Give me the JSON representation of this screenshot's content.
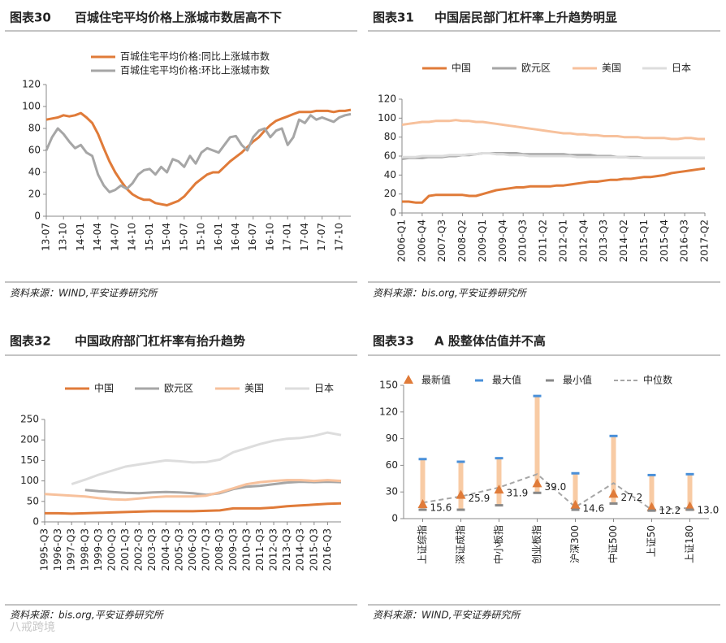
{
  "chart_data": [
    {
      "type": "line",
      "figure": "图表30",
      "title": "百城住宅平均价格上涨城市数居高不下",
      "source": "资料来源：WIND,平安证券研究所",
      "categories": [
        "13-07",
        null,
        null,
        "13-10",
        null,
        null,
        "14-01",
        null,
        null,
        "14-04",
        null,
        null,
        "14-07",
        null,
        null,
        "14-10",
        null,
        null,
        "15-01",
        null,
        null,
        "15-04",
        null,
        null,
        "15-07",
        null,
        null,
        "15-10",
        null,
        null,
        "16-01",
        null,
        null,
        "16-04",
        null,
        null,
        "16-07",
        null,
        null,
        "16-10",
        null,
        null,
        "17-01",
        null,
        null,
        "17-04",
        null,
        null,
        "17-07",
        null,
        null,
        "17-10",
        null,
        null
      ],
      "series": [
        {
          "name": "百城住宅平均价格:同比上涨城市数",
          "color": "#e07b39",
          "values": [
            88,
            89,
            90,
            92,
            91,
            92,
            94,
            90,
            85,
            75,
            62,
            50,
            40,
            32,
            25,
            20,
            17,
            15,
            15,
            12,
            11,
            10,
            12,
            14,
            18,
            24,
            30,
            34,
            38,
            40,
            40,
            45,
            50,
            54,
            58,
            63,
            68,
            72,
            78,
            83,
            87,
            89,
            91,
            93,
            95,
            95,
            95,
            96,
            96,
            96,
            95,
            96,
            96,
            97
          ]
        },
        {
          "name": "百城住宅平均价格:环比上涨城市数",
          "color": "#a6a6a6",
          "values": [
            60,
            72,
            80,
            75,
            68,
            62,
            65,
            58,
            55,
            38,
            28,
            22,
            24,
            28,
            25,
            30,
            38,
            42,
            43,
            38,
            45,
            40,
            52,
            50,
            45,
            55,
            48,
            58,
            62,
            60,
            58,
            65,
            72,
            73,
            65,
            60,
            72,
            78,
            80,
            72,
            78,
            80,
            65,
            72,
            88,
            85,
            92,
            88,
            90,
            88,
            86,
            90,
            92,
            93
          ]
        }
      ],
      "ylim": [
        0,
        120
      ],
      "yticks": [
        0,
        20,
        40,
        60,
        80,
        100,
        120
      ],
      "legend": "top"
    },
    {
      "type": "line",
      "figure": "图表31",
      "title": "中国居民部门杠杆率上升趋势明显",
      "source": "资料来源：bis.org,平安证券研究所",
      "categories": [
        "2006-Q1",
        null,
        null,
        "2006-Q4",
        null,
        null,
        "2007-Q3",
        null,
        null,
        "2008-Q2",
        null,
        null,
        "2009-Q1",
        null,
        null,
        "2009-Q4",
        null,
        null,
        "2010-Q3",
        null,
        null,
        "2011-Q2",
        null,
        null,
        "2012-Q1",
        null,
        null,
        "2012-Q4",
        null,
        null,
        "2013-Q3",
        null,
        null,
        "2014-Q2",
        null,
        null,
        "2015-Q1",
        null,
        null,
        "2015-Q4",
        null,
        null,
        "2016-Q3",
        null,
        null,
        "2017-Q2"
      ],
      "series": [
        {
          "name": "中国",
          "color": "#e07b39",
          "values": [
            12,
            12,
            11,
            11,
            18,
            19,
            19,
            19,
            19,
            19,
            18,
            18,
            20,
            22,
            24,
            25,
            26,
            27,
            27,
            28,
            28,
            28,
            28,
            29,
            29,
            30,
            31,
            32,
            33,
            33,
            34,
            35,
            35,
            36,
            36,
            37,
            38,
            38,
            39,
            40,
            42,
            43,
            44,
            45,
            46,
            47
          ]
        },
        {
          "name": "欧元区",
          "color": "#a6a6a6",
          "values": [
            57,
            58,
            58,
            58,
            59,
            59,
            59,
            60,
            60,
            61,
            61,
            62,
            63,
            63,
            63,
            63,
            63,
            63,
            62,
            62,
            62,
            62,
            62,
            62,
            62,
            61,
            61,
            61,
            61,
            60,
            60,
            60,
            59,
            59,
            59,
            59,
            58,
            58,
            58,
            58,
            58,
            58,
            58,
            58,
            58,
            58
          ]
        },
        {
          "name": "美国",
          "color": "#f7c19c",
          "values": [
            93,
            94,
            95,
            96,
            96,
            97,
            97,
            97,
            98,
            97,
            97,
            96,
            96,
            95,
            94,
            93,
            92,
            91,
            90,
            89,
            88,
            87,
            86,
            85,
            84,
            84,
            83,
            83,
            82,
            82,
            81,
            81,
            81,
            80,
            80,
            80,
            79,
            79,
            79,
            79,
            78,
            78,
            79,
            79,
            78,
            78
          ]
        },
        {
          "name": "日本",
          "color": "#dddddd",
          "values": [
            59,
            59,
            59,
            60,
            60,
            60,
            60,
            61,
            61,
            61,
            62,
            62,
            63,
            63,
            62,
            62,
            61,
            61,
            61,
            60,
            60,
            60,
            60,
            60,
            60,
            60,
            59,
            59,
            59,
            59,
            59,
            59,
            59,
            59,
            58,
            58,
            58,
            58,
            58,
            58,
            58,
            58,
            58,
            58,
            58,
            58
          ]
        }
      ],
      "ylim": [
        0,
        120
      ],
      "yticks": [
        0,
        20,
        40,
        60,
        80,
        100,
        120
      ],
      "legend": "top"
    },
    {
      "type": "line",
      "figure": "图表32",
      "title": "中国政府部门杠杆率有抬升趋势",
      "source": "资料来源：bis.org,平安证券研究所",
      "categories": [
        "1995-Q3",
        "1996-Q3",
        "1997-Q3",
        "1998-Q3",
        "1999-Q3",
        "2000-Q3",
        "2001-Q3",
        "2002-Q3",
        "2003-Q3",
        "2004-Q3",
        "2005-Q3",
        "2006-Q3",
        "2007-Q3",
        "2008-Q3",
        "2009-Q3",
        "2010-Q3",
        "2011-Q3",
        "2012-Q3",
        "2013-Q3",
        "2014-Q3",
        "2015-Q3",
        "2016-Q3",
        null
      ],
      "series": [
        {
          "name": "中国",
          "color": "#e07b39",
          "values": [
            21,
            21,
            20,
            21,
            22,
            23,
            24,
            25,
            26,
            26,
            26,
            26,
            27,
            28,
            33,
            33,
            33,
            35,
            38,
            40,
            42,
            44,
            45
          ]
        },
        {
          "name": "欧元区",
          "color": "#a6a6a6",
          "values": [
            null,
            null,
            null,
            78,
            75,
            73,
            71,
            70,
            72,
            73,
            72,
            70,
            66,
            70,
            80,
            86,
            88,
            92,
            96,
            98,
            97,
            98,
            97
          ]
        },
        {
          "name": "美国",
          "color": "#f7c19c",
          "values": [
            68,
            66,
            64,
            62,
            58,
            55,
            54,
            57,
            60,
            62,
            62,
            62,
            64,
            72,
            82,
            92,
            97,
            100,
            102,
            102,
            100,
            102,
            100
          ]
        },
        {
          "name": "日本",
          "color": "#dddddd",
          "values": [
            null,
            null,
            92,
            103,
            115,
            125,
            135,
            140,
            145,
            150,
            148,
            145,
            146,
            152,
            170,
            180,
            190,
            198,
            203,
            205,
            210,
            218,
            212
          ]
        }
      ],
      "ylim": [
        0,
        250
      ],
      "yticks": [
        0,
        50,
        100,
        150,
        200,
        250
      ],
      "legend": "top"
    },
    {
      "type": "range",
      "figure": "图表33",
      "title": "A 股整体估值并不高",
      "source": "资料来源：WIND,平安证券研究所",
      "categories": [
        "上证综指",
        "深证成指",
        "中小板指",
        "创业板指",
        "沪深300",
        "中证500",
        "上证50",
        "上证180"
      ],
      "series": [
        {
          "name": "最新值",
          "color": "#e07b39",
          "marker": "triangle",
          "values": [
            15.6,
            25.9,
            31.9,
            39.0,
            14.6,
            27.2,
            12.2,
            13.0
          ],
          "value_labels": [
            "15.6",
            "25.9",
            "31.9",
            "39.0",
            "14.6",
            "27.2",
            "12.2",
            "13.0"
          ]
        },
        {
          "name": "最大值",
          "color": "#4a90d9",
          "marker": "dash",
          "values": [
            67,
            64,
            68,
            138,
            51,
            93,
            49,
            50
          ]
        },
        {
          "name": "最小值",
          "color": "#888888",
          "marker": "dash",
          "values": [
            10,
            10,
            15,
            29,
            10,
            17,
            9,
            10
          ]
        },
        {
          "name": "中位数",
          "color": "#a6a6a6",
          "marker": "dashed-line",
          "values": [
            18,
            25,
            35,
            50,
            13,
            40,
            10,
            12
          ]
        }
      ],
      "range_color": "#f8cba4",
      "ylim": [
        0,
        150
      ],
      "yticks": [
        0,
        30,
        60,
        90,
        120,
        150
      ],
      "legend": "top"
    }
  ],
  "watermark": "八戒跨境"
}
